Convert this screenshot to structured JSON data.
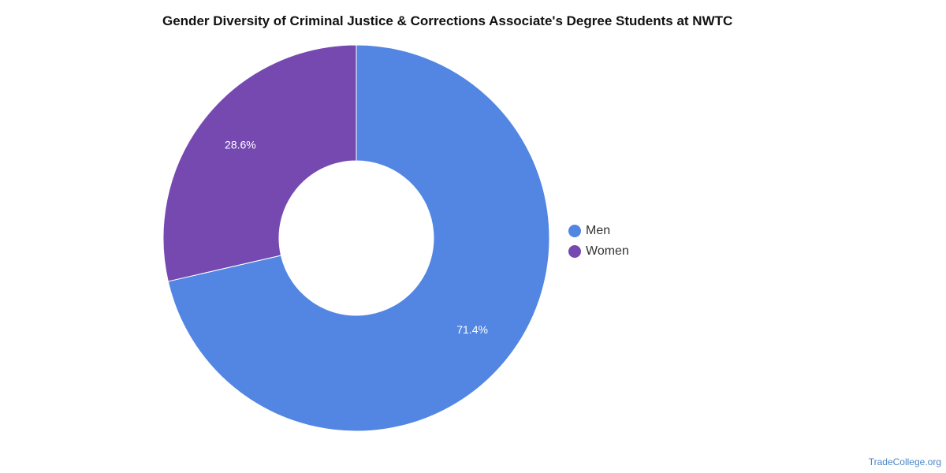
{
  "chart_data": {
    "type": "pie",
    "style": "donut",
    "title": "Gender Diversity of Criminal Justice & Corrections Associate's Degree Students at NWTC",
    "slices": [
      {
        "label": "Men",
        "value": 71.4,
        "display": "71.4%",
        "color": "#5286e2"
      },
      {
        "label": "Women",
        "value": 28.6,
        "display": "28.6%",
        "color": "#7649b1"
      }
    ],
    "legend_position": "right"
  },
  "watermark": "TradeCollege.org"
}
